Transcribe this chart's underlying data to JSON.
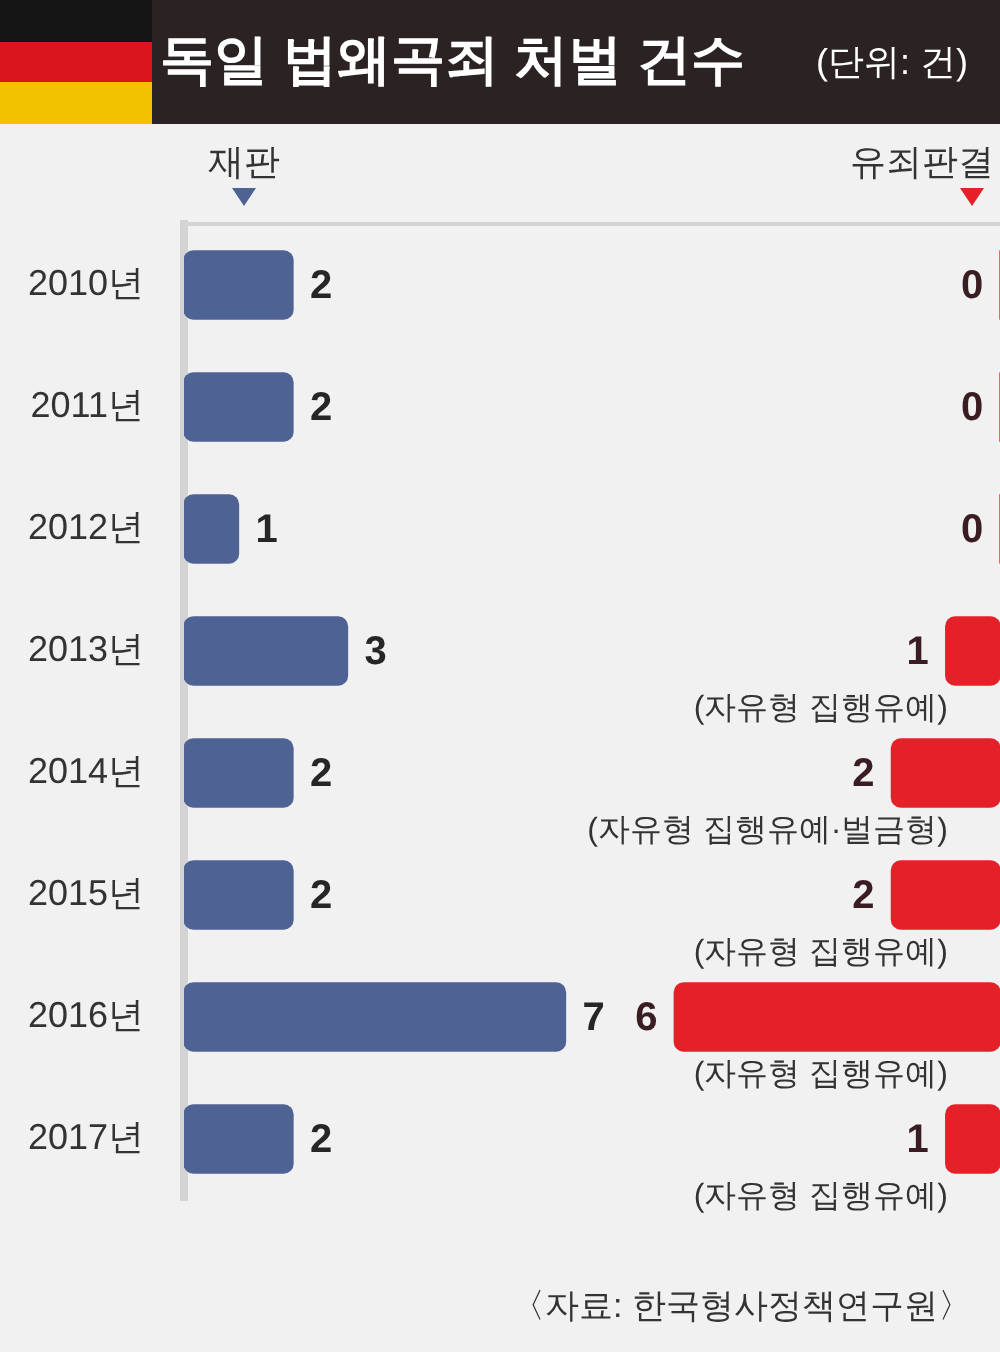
{
  "chart_data": [
    {
      "type": "bar",
      "orientation": "horizontal",
      "title": "독일 법왜곡죄 처벌 건수",
      "categories": [
        "2010년",
        "2011년",
        "2012년",
        "2013년",
        "2014년",
        "2015년",
        "2016년",
        "2017년"
      ],
      "series": [
        {
          "name": "재판",
          "color": "#4f6294",
          "values": [
            2,
            2,
            1,
            3,
            2,
            2,
            7,
            2
          ]
        }
      ],
      "xlim": [
        0,
        8
      ],
      "tick_labels": "y",
      "legend": "top left",
      "data_labels": true
    },
    {
      "type": "bar",
      "orientation": "horizontal",
      "subtitle": "(단위: 건)",
      "categories": [
        null,
        null,
        null,
        null,
        null,
        null,
        null,
        null
      ],
      "series": [
        {
          "name": "유죄판결",
          "color": "#e42029",
          "values": [
            0,
            0,
            0,
            1,
            2,
            2,
            6,
            1
          ]
        }
      ],
      "xlim": [
        7,
        0
      ],
      "tick_labels": "y",
      "legend": "top right",
      "data_labels": true,
      "annotations": [
        "(자유형 집행유예)",
        "(자유형 집행유예·벌금형)",
        "(자유형 집행유예)",
        "(자유형 집행유예)",
        "(자유형 집행유예)",
        "〈자료: 한국형사정책연구원〉"
      ]
    }
  ]
}
